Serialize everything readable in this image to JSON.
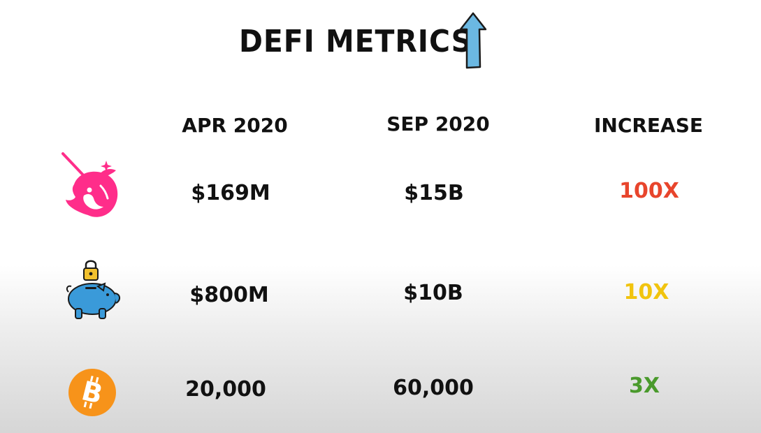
{
  "title": "DEFI METRICS",
  "title_arrow_icon": "up-arrow-icon",
  "columns": [
    "APR 2020",
    "SEP 2020",
    "INCREASE"
  ],
  "rows": [
    {
      "icon": "unicorn-icon",
      "apr_2020": "$169M",
      "sep_2020": "$15B",
      "increase": "100X",
      "increase_color": "#e8452c"
    },
    {
      "icon": "piggy-bank-lock-icon",
      "apr_2020": "$800M",
      "sep_2020": "$10B",
      "increase": "10X",
      "increase_color": "#f1c40f"
    },
    {
      "icon": "bitcoin-icon",
      "apr_2020": "20,000",
      "sep_2020": "60,000",
      "increase": "3X",
      "increase_color": "#4a9a2c"
    }
  ],
  "colors": {
    "unicorn": "#ff2d8a",
    "piggy": "#3a9ad9",
    "lock": "#f2c12e",
    "bitcoin": "#f7931a",
    "arrow": "#6bb8e2"
  }
}
